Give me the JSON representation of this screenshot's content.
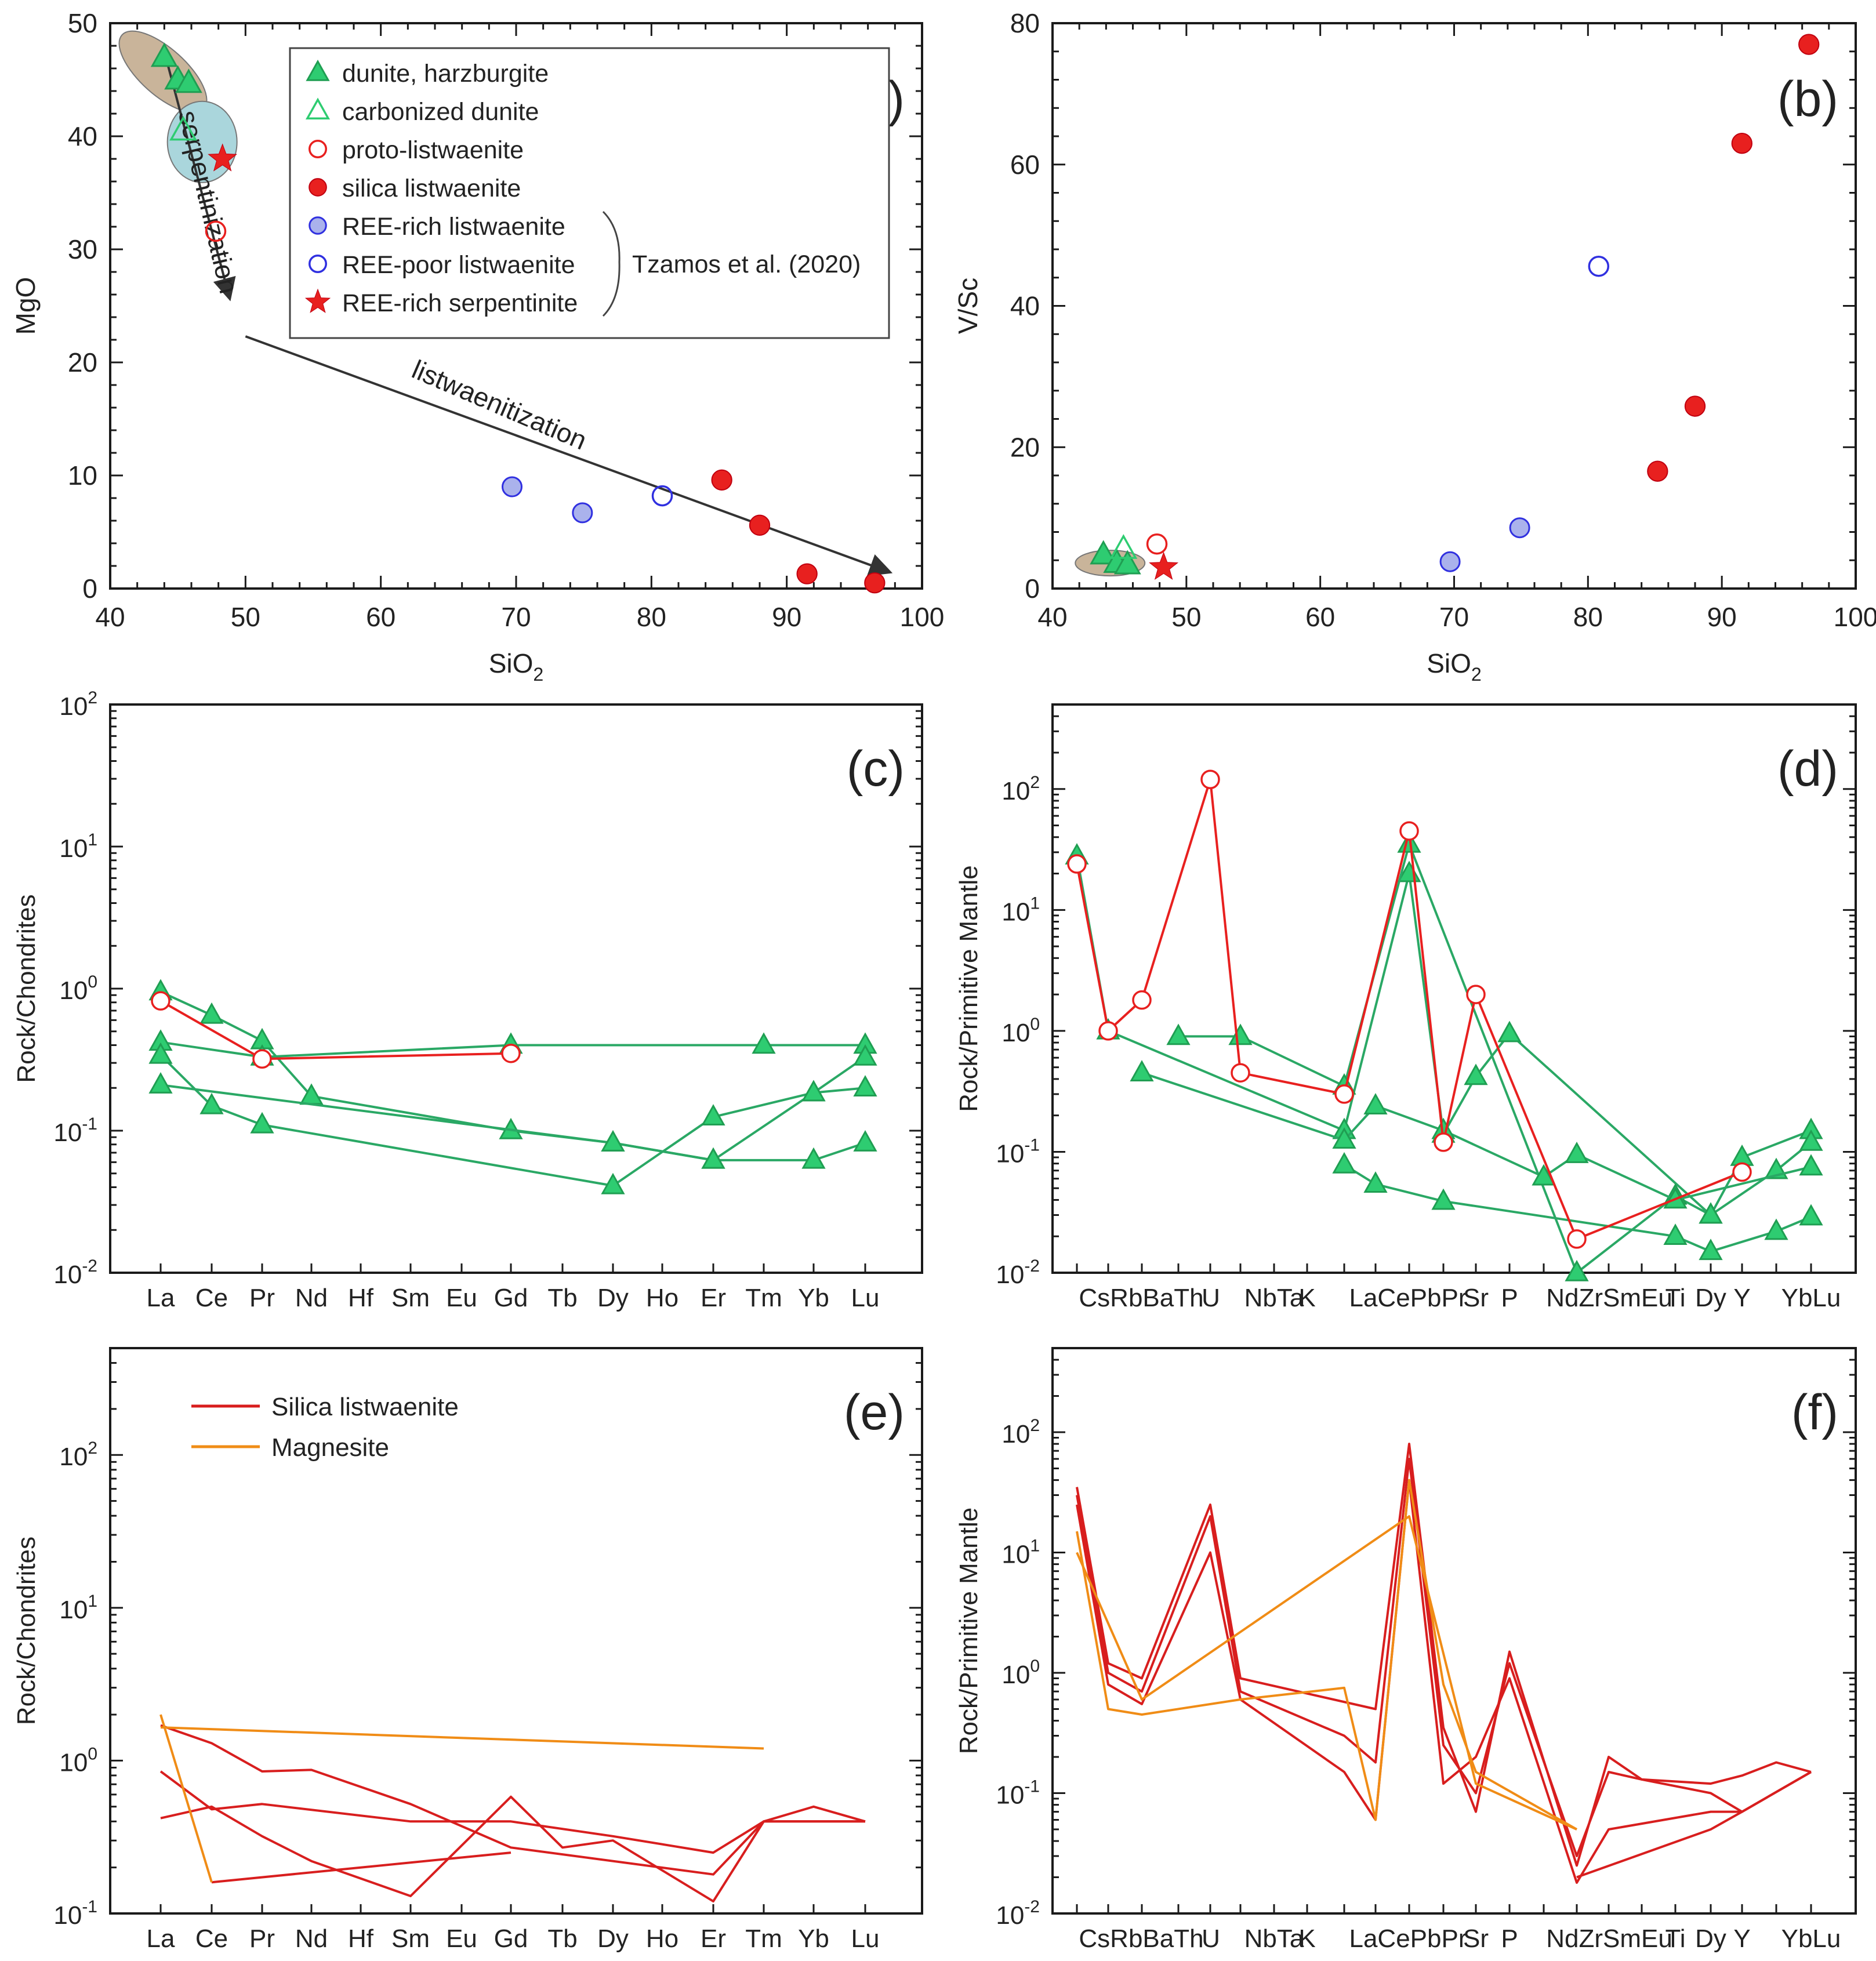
{
  "chart_data": [
    {
      "panel": "a",
      "type": "scatter",
      "label": "(a)",
      "xlabel": "SiO2",
      "ylabel": "MgO",
      "xlim": [
        40,
        100
      ],
      "ylim": [
        0,
        50
      ],
      "xticks": [
        40,
        50,
        60,
        70,
        80,
        90,
        100
      ],
      "yticks": [
        0,
        10,
        20,
        30,
        40,
        50
      ],
      "series": [
        {
          "name": "dunite, harzburgite",
          "marker": "triangle-filled",
          "color": "#2ecc71",
          "points": [
            [
              44.0,
              47.0
            ],
            [
              45.0,
              45.0
            ],
            [
              45.8,
              44.7
            ]
          ]
        },
        {
          "name": "carbonized dunite",
          "marker": "triangle-open",
          "color": "#2ecc71",
          "points": [
            [
              45.4,
              40.5
            ]
          ]
        },
        {
          "name": "proto-listwaenite",
          "marker": "circle-open",
          "color": "#e8201f",
          "points": [
            [
              47.8,
              31.6
            ]
          ]
        },
        {
          "name": "silica listwaenite",
          "marker": "circle-filled",
          "color": "#e8201f",
          "points": [
            [
              85.2,
              9.6
            ],
            [
              88.0,
              5.6
            ],
            [
              91.5,
              1.3
            ],
            [
              96.5,
              0.5
            ]
          ]
        },
        {
          "name": "REE-rich listwaenite",
          "marker": "circle-blue-filled",
          "color": "#3030e0",
          "points": [
            [
              69.7,
              9.0
            ],
            [
              74.9,
              6.7
            ]
          ]
        },
        {
          "name": "REE-poor listwaenite",
          "marker": "circle-blue-open",
          "color": "#3030e0",
          "points": [
            [
              80.8,
              8.2
            ]
          ]
        },
        {
          "name": "REE-rich serpentinite",
          "marker": "star",
          "color": "#e8201f",
          "points": [
            [
              48.3,
              38.0
            ]
          ]
        }
      ],
      "legend_reference": "Tzamos et al. (2020)",
      "annotations": [
        "serpentinization",
        "listwaenitization"
      ],
      "fields": [
        {
          "name": "serpentinite field",
          "color": "#c9b49a",
          "center": [
            43.9,
            45.7
          ]
        },
        {
          "name": "REE-rich serpentinite field",
          "color": "#aad6dc",
          "center": [
            46.8,
            39.5
          ]
        }
      ]
    },
    {
      "panel": "b",
      "type": "scatter",
      "label": "(b)",
      "xlabel": "SiO2",
      "ylabel": "V/Sc",
      "xlim": [
        40,
        100
      ],
      "ylim": [
        0,
        80
      ],
      "xticks": [
        40,
        50,
        60,
        70,
        80,
        90,
        100
      ],
      "yticks": [
        0,
        20,
        40,
        60,
        80
      ],
      "series": [
        {
          "name": "dunite, harzburgite",
          "marker": "triangle-filled",
          "color": "#2ecc71",
          "points": [
            [
              43.8,
              4.8
            ],
            [
              44.8,
              3.6
            ],
            [
              45.6,
              3.4
            ]
          ]
        },
        {
          "name": "carbonized dunite",
          "marker": "triangle-open",
          "color": "#2ecc71",
          "points": [
            [
              45.3,
              5.6
            ]
          ]
        },
        {
          "name": "proto-listwaenite",
          "marker": "circle-open",
          "color": "#e8201f",
          "points": [
            [
              47.8,
              6.3
            ]
          ]
        },
        {
          "name": "silica listwaenite",
          "marker": "circle-filled",
          "color": "#e8201f",
          "points": [
            [
              85.2,
              16.6
            ],
            [
              88.0,
              25.8
            ],
            [
              91.5,
              63.0
            ],
            [
              96.5,
              77.0
            ]
          ]
        },
        {
          "name": "REE-rich listwaenite",
          "marker": "circle-blue-filled",
          "color": "#3030e0",
          "points": [
            [
              69.7,
              3.8
            ],
            [
              74.9,
              8.6
            ]
          ]
        },
        {
          "name": "REE-poor listwaenite",
          "marker": "circle-blue-open",
          "color": "#3030e0",
          "points": [
            [
              80.8,
              45.6
            ]
          ]
        },
        {
          "name": "REE-rich serpentinite",
          "marker": "star",
          "color": "#e8201f",
          "points": [
            [
              48.3,
              3.0
            ]
          ]
        }
      ]
    },
    {
      "panel": "c",
      "type": "line",
      "label": "(c)",
      "ylabel": "Rock/Chondrites",
      "yscale": "log",
      "ylim": [
        0.01,
        100
      ],
      "categories": [
        "La",
        "Ce",
        "Pr",
        "Nd",
        "Hf",
        "Sm",
        "Eu",
        "Gd",
        "Tb",
        "Dy",
        "Ho",
        "Er",
        "Tm",
        "Yb",
        "Lu"
      ],
      "series": [
        {
          "name": "dunite 1",
          "color": "#2aa865",
          "marker": "triangle",
          "values": [
            0.95,
            0.65,
            0.43,
            0.175,
            null,
            null,
            null,
            0.1,
            null,
            0.082,
            null,
            0.062,
            null,
            0.062,
            0.082
          ]
        },
        {
          "name": "dunite 2",
          "color": "#2aa865",
          "marker": "triangle",
          "values": [
            0.42,
            null,
            0.33,
            null,
            null,
            null,
            null,
            0.4,
            null,
            null,
            null,
            null,
            0.4,
            null,
            0.4
          ]
        },
        {
          "name": "dunite 3",
          "color": "#2aa865",
          "marker": "triangle",
          "values": [
            0.34,
            0.15,
            0.11,
            null,
            null,
            null,
            null,
            null,
            null,
            0.041,
            null,
            0.125,
            null,
            0.185,
            0.33
          ]
        },
        {
          "name": "dunite 4",
          "color": "#2aa865",
          "marker": "triangle",
          "values": [
            0.21,
            null,
            null,
            null,
            null,
            null,
            null,
            null,
            null,
            0.082,
            null,
            0.062,
            null,
            0.185,
            0.2
          ]
        },
        {
          "name": "proto-listwaenite",
          "color": "#e8201f",
          "marker": "circle",
          "values": [
            0.82,
            null,
            0.32,
            null,
            null,
            null,
            null,
            0.35,
            null,
            null,
            null,
            null,
            null,
            null,
            null
          ]
        }
      ]
    },
    {
      "panel": "d",
      "type": "line",
      "label": "(d)",
      "ylabel": "Rock/Primitive Mantle",
      "yscale": "log",
      "ylim": [
        0.01,
        500
      ],
      "categories": [
        "Cs",
        "Rb",
        "Ba",
        "Th",
        "U",
        "Nb",
        "Ta",
        "K",
        "La",
        "Ce",
        "Pb",
        "Pr",
        "Sr",
        "P",
        "Nd",
        "Zr",
        "Sm",
        "Eu",
        "Ti",
        "Dy",
        "Y",
        "Yb",
        "Lu"
      ],
      "category_labels": [
        "CsRbBaTh",
        "U",
        "NbTa",
        "K",
        "LaCePbPr",
        "Sr",
        "P",
        "NdZrSmEu",
        "Ti",
        "Dy",
        "Y",
        "YbLu"
      ],
      "series": [
        {
          "name": "dunite 1",
          "color": "#2aa865",
          "marker": "triangle",
          "values": [
            28,
            1.0,
            null,
            null,
            null,
            null,
            null,
            null,
            0.15,
            null,
            20,
            0.14,
            0.42,
            0.95,
            null,
            null,
            null,
            null,
            null,
            0.03,
            0.09,
            null,
            0.15
          ]
        },
        {
          "name": "dunite 2",
          "color": "#2aa865",
          "marker": "triangle",
          "values": [
            null,
            null,
            null,
            0.9,
            null,
            0.9,
            null,
            null,
            0.35,
            null,
            35,
            null,
            null,
            null,
            null,
            0.01,
            null,
            null,
            0.043,
            0.03,
            null,
            0.07,
            0.12
          ]
        },
        {
          "name": "dunite 3",
          "color": "#2aa865",
          "marker": "triangle",
          "values": [
            null,
            null,
            0.45,
            null,
            null,
            null,
            null,
            null,
            0.125,
            0.24,
            null,
            0.15,
            null,
            null,
            0.062,
            0.095,
            null,
            null,
            0.04,
            null,
            null,
            null,
            0.075
          ]
        },
        {
          "name": "dunite 4",
          "color": "#2aa865",
          "marker": "triangle",
          "values": [
            null,
            null,
            null,
            null,
            null,
            null,
            null,
            null,
            0.078,
            0.054,
            null,
            0.039,
            null,
            null,
            null,
            null,
            null,
            null,
            0.02,
            0.015,
            null,
            0.022,
            0.029
          ]
        },
        {
          "name": "proto-listwaenite",
          "color": "#e8201f",
          "marker": "circle",
          "values": [
            24,
            1.0,
            1.8,
            null,
            120,
            0.45,
            null,
            null,
            0.3,
            null,
            45,
            0.12,
            2.0,
            null,
            null,
            0.019,
            null,
            null,
            null,
            null,
            0.068,
            null,
            null
          ]
        }
      ]
    },
    {
      "panel": "e",
      "type": "line",
      "label": "(e)",
      "ylabel": "Rock/Chondrites",
      "yscale": "log",
      "ylim": [
        0.1,
        500
      ],
      "categories": [
        "La",
        "Ce",
        "Pr",
        "Nd",
        "Hf",
        "Sm",
        "Eu",
        "Gd",
        "Tb",
        "Dy",
        "Ho",
        "Er",
        "Tm",
        "Yb",
        "Lu"
      ],
      "legend": [
        {
          "name": "Silica listwaenite",
          "color": "#d81e1e"
        },
        {
          "name": "Magnesite",
          "color": "#f08c16"
        }
      ],
      "series": [
        {
          "name": "Silica listwaenite 1",
          "color": "#d81e1e",
          "values": [
            1.7,
            1.3,
            0.85,
            0.87,
            null,
            0.52,
            null,
            0.27,
            null,
            null,
            null,
            0.18,
            0.4,
            null,
            0.4
          ]
        },
        {
          "name": "Silica listwaenite 2",
          "color": "#d81e1e",
          "values": [
            0.85,
            0.48,
            0.52,
            null,
            null,
            0.4,
            0.4,
            0.4,
            null,
            0.32,
            null,
            0.25,
            0.4,
            0.5,
            0.4
          ]
        },
        {
          "name": "Silica listwaenite 3",
          "color": "#d81e1e",
          "values": [
            0.42,
            0.5,
            0.32,
            0.22,
            null,
            0.13,
            null,
            0.58,
            0.27,
            0.3,
            null,
            0.12,
            0.4,
            null,
            0.4
          ]
        },
        {
          "name": "Silica listwaenite 4",
          "color": "#d81e1e",
          "values": [
            null,
            0.16,
            null,
            null,
            null,
            null,
            null,
            0.25,
            null,
            null,
            null,
            null,
            null,
            null,
            null
          ]
        },
        {
          "name": "Magnesite 1",
          "color": "#f08c16",
          "values": [
            1.65,
            null,
            null,
            null,
            null,
            null,
            null,
            null,
            null,
            null,
            null,
            null,
            1.2,
            null,
            null
          ]
        },
        {
          "name": "Magnesite 2",
          "color": "#f08c16",
          "values": [
            2.0,
            0.16,
            null,
            null,
            null,
            null,
            null,
            null,
            null,
            null,
            null,
            null,
            null,
            null,
            null
          ]
        }
      ]
    },
    {
      "panel": "f",
      "type": "line",
      "label": "(f)",
      "ylabel": "Rock/Primitive Mantle",
      "yscale": "log",
      "ylim": [
        0.01,
        500
      ],
      "categories": [
        "Cs",
        "Rb",
        "Ba",
        "Th",
        "U",
        "Nb",
        "Ta",
        "K",
        "La",
        "Ce",
        "Pb",
        "Pr",
        "Sr",
        "P",
        "Nd",
        "Zr",
        "Sm",
        "Eu",
        "Ti",
        "Dy",
        "Y",
        "Yb",
        "Lu"
      ],
      "category_labels": [
        "CsRbBaTh",
        "U",
        "NbTa",
        "K",
        "LaCePbPr",
        "Sr",
        "P",
        "NdZrSmEu",
        "Ti",
        "Dy",
        "Y",
        "YbLu"
      ],
      "series": [
        {
          "name": "Silica listwaenite 1",
          "color": "#d81e1e",
          "values": [
            35,
            1.2,
            0.9,
            null,
            25,
            0.9,
            null,
            null,
            null,
            0.5,
            80,
            0.35,
            0.07,
            1.5,
            null,
            0.025,
            0.2,
            0.13,
            null,
            0.12,
            0.14,
            0.18,
            0.15
          ]
        },
        {
          "name": "Silica listwaenite 2",
          "color": "#d81e1e",
          "values": [
            30,
            1.0,
            0.7,
            null,
            20,
            0.7,
            null,
            null,
            0.3,
            0.18,
            60,
            0.25,
            0.1,
            1.2,
            null,
            0.03,
            0.15,
            0.13,
            null,
            0.1,
            0.07,
            null,
            0.15
          ]
        },
        {
          "name": "Silica listwaenite 3",
          "color": "#d81e1e",
          "values": [
            25,
            0.8,
            0.55,
            null,
            10,
            0.6,
            null,
            null,
            0.15,
            0.06,
            40,
            0.12,
            0.2,
            0.9,
            null,
            0.018,
            0.05,
            null,
            null,
            0.07,
            0.07,
            null,
            0.15
          ]
        },
        {
          "name": "Silica listwaenite 4",
          "color": "#d81e1e",
          "values": [
            null,
            null,
            null,
            null,
            null,
            null,
            null,
            null,
            null,
            null,
            null,
            null,
            null,
            null,
            null,
            0.02,
            null,
            null,
            null,
            0.05,
            0.07,
            null,
            null
          ]
        },
        {
          "name": "Magnesite 1",
          "color": "#f08c16",
          "values": [
            15,
            0.5,
            0.45,
            null,
            null,
            0.6,
            null,
            null,
            0.75,
            0.06,
            40,
            0.8,
            0.15,
            null,
            null,
            0.05,
            null,
            null,
            null,
            null,
            null,
            null,
            null
          ]
        },
        {
          "name": "Magnesite 2",
          "color": "#f08c16",
          "values": [
            10,
            null,
            0.6,
            null,
            null,
            null,
            null,
            null,
            null,
            null,
            20,
            null,
            0.12,
            null,
            null,
            0.05,
            null,
            null,
            null,
            null,
            null,
            null,
            null
          ]
        }
      ]
    }
  ]
}
